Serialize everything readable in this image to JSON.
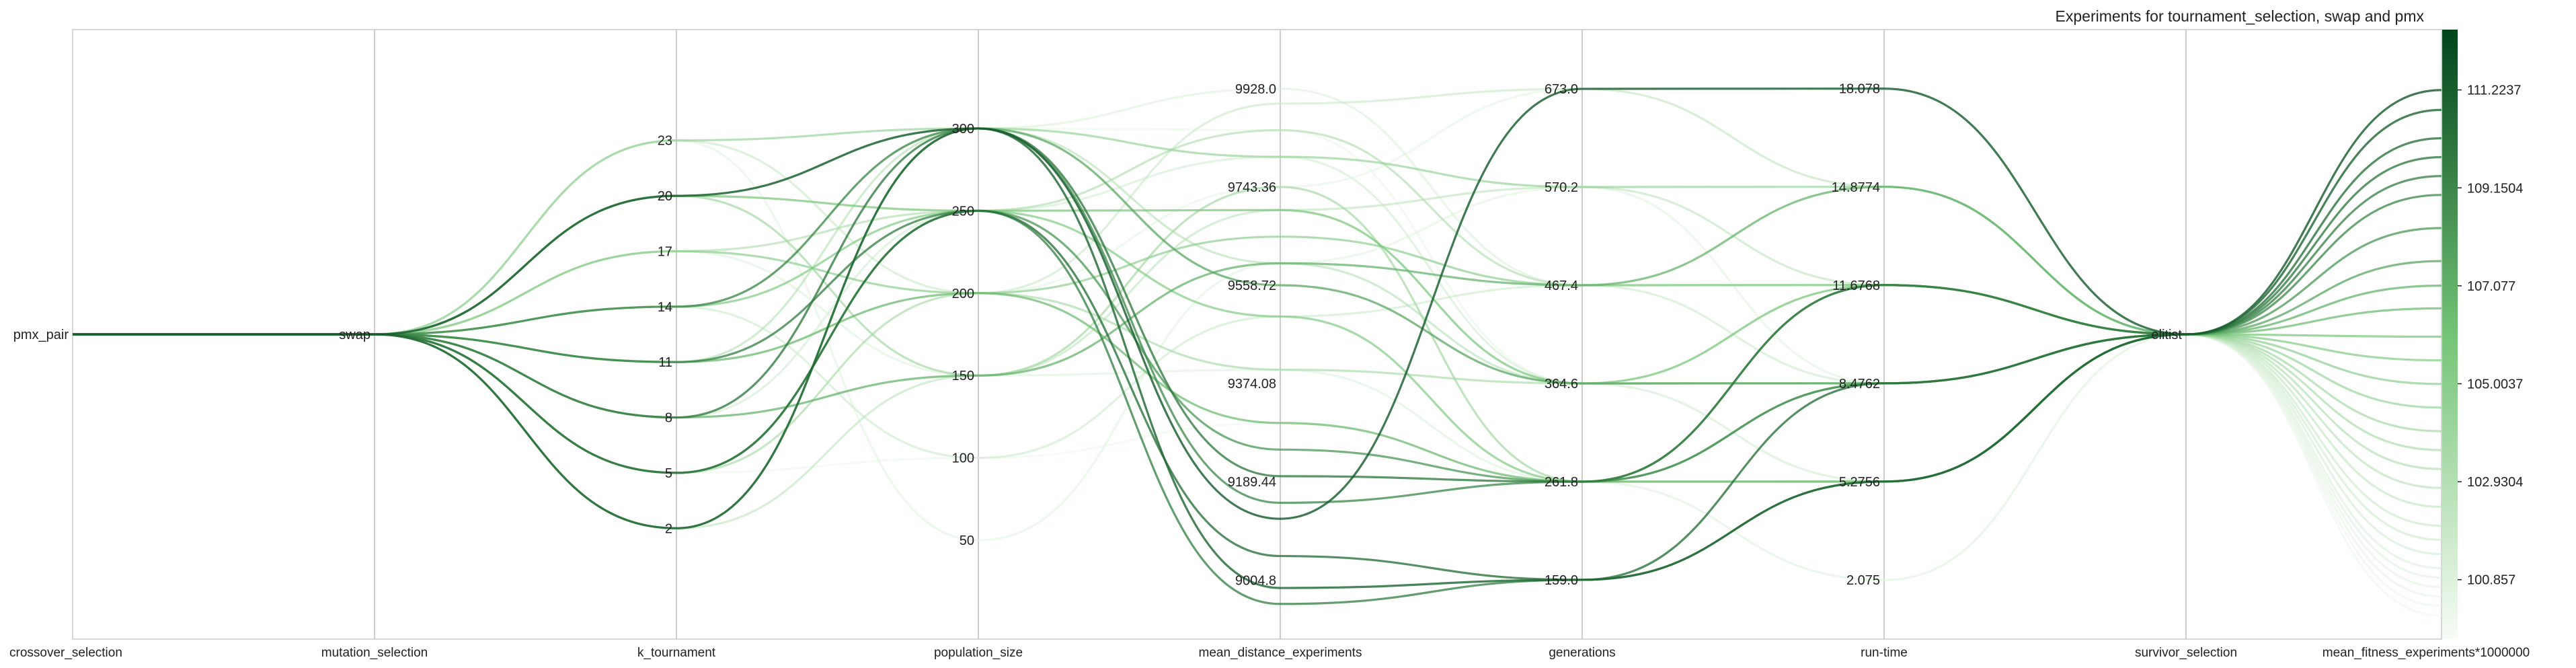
{
  "chart_data": {
    "type": "parallel_coordinates",
    "title": "Experiments for tournament_selection, swap and pmx",
    "colormap": {
      "name": "Greens",
      "low": "#f7fcf5",
      "mid": "#74c476",
      "high": "#00441b"
    },
    "line_alpha": 0.55,
    "axes": [
      {
        "name": "crossover_selection",
        "type": "categorical",
        "categories": [
          "pmx_pair"
        ],
        "range": [
          0,
          1
        ]
      },
      {
        "name": "mutation_selection",
        "type": "categorical",
        "categories": [
          "swap"
        ],
        "range": [
          0,
          1
        ]
      },
      {
        "name": "k_tournament",
        "type": "numeric",
        "range": [
          -4,
          29
        ],
        "ticks": [
          "2",
          "5",
          "8",
          "11",
          "14",
          "17",
          "20",
          "23"
        ]
      },
      {
        "name": "population_size",
        "type": "numeric",
        "range": [
          -10,
          360
        ],
        "ticks": [
          "50",
          "100",
          "150",
          "200",
          "250",
          "300"
        ]
      },
      {
        "name": "mean_distance_experiments",
        "type": "numeric",
        "range": [
          8894,
          10039
        ],
        "ticks": [
          "9004.8",
          "9189.44",
          "9374.08",
          "9558.72",
          "9743.36",
          "9928.0"
        ]
      },
      {
        "name": "generations",
        "type": "numeric",
        "range": [
          97,
          735
        ],
        "ticks": [
          "159.0",
          "261.8",
          "364.6",
          "467.4",
          "570.2",
          "673.0"
        ]
      },
      {
        "name": "run-time",
        "type": "numeric",
        "range": [
          0.15,
          20.0
        ],
        "ticks": [
          "2.075",
          "5.2756",
          "8.4762",
          "11.6768",
          "14.8774",
          "18.078"
        ]
      },
      {
        "name": "survivor_selection",
        "type": "categorical",
        "categories": [
          "elitist"
        ],
        "range": [
          0,
          1
        ]
      },
      {
        "name": "mean_fitness_experiments*1000000",
        "type": "numeric",
        "range": [
          99.6,
          112.5
        ],
        "colorbar": true,
        "ticks": [
          "100.857",
          "102.9304",
          "105.0037",
          "107.077",
          "109.1504",
          "111.2237"
        ]
      }
    ],
    "experiments": [
      {
        "k_tournament": 20,
        "population_size": 300,
        "mean_distance_experiments": 9120,
        "generations": 673,
        "run-time": 18.078,
        "mean_fitness": 111.22
      },
      {
        "k_tournament": 2,
        "population_size": 300,
        "mean_distance_experiments": 8990,
        "generations": 159,
        "run-time": 5.28,
        "mean_fitness": 110.8
      },
      {
        "k_tournament": 5,
        "population_size": 250,
        "mean_distance_experiments": 9050,
        "generations": 159,
        "run-time": 8.48,
        "mean_fitness": 110.2
      },
      {
        "k_tournament": 8,
        "population_size": 300,
        "mean_distance_experiments": 9200,
        "generations": 261.8,
        "run-time": 11.68,
        "mean_fitness": 109.8
      },
      {
        "k_tournament": 11,
        "population_size": 250,
        "mean_distance_experiments": 8960,
        "generations": 159,
        "run-time": 5.28,
        "mean_fitness": 109.4
      },
      {
        "k_tournament": 14,
        "population_size": 300,
        "mean_distance_experiments": 9150,
        "generations": 261.8,
        "run-time": 8.48,
        "mean_fitness": 109.0
      },
      {
        "k_tournament": 5,
        "population_size": 250,
        "mean_distance_experiments": 9250,
        "generations": 261.8,
        "run-time": 11.68,
        "mean_fitness": 108.3
      },
      {
        "k_tournament": 2,
        "population_size": 300,
        "mean_distance_experiments": 9558.72,
        "generations": 364.6,
        "run-time": 8.48,
        "mean_fitness": 107.6
      },
      {
        "k_tournament": 8,
        "population_size": 150,
        "mean_distance_experiments": 9600,
        "generations": 467.4,
        "run-time": 14.88,
        "mean_fitness": 107.08
      },
      {
        "k_tournament": 11,
        "population_size": 200,
        "mean_distance_experiments": 9300,
        "generations": 261.8,
        "run-time": 5.28,
        "mean_fitness": 106.6
      },
      {
        "k_tournament": 20,
        "population_size": 250,
        "mean_distance_experiments": 9700,
        "generations": 364.6,
        "run-time": 11.68,
        "mean_fitness": 106.0
      },
      {
        "k_tournament": 14,
        "population_size": 250,
        "mean_distance_experiments": 9500,
        "generations": 261.8,
        "run-time": 8.48,
        "mean_fitness": 105.5
      },
      {
        "k_tournament": 17,
        "population_size": 200,
        "mean_distance_experiments": 9650,
        "generations": 467.4,
        "run-time": 11.68,
        "mean_fitness": 105.0
      },
      {
        "k_tournament": 23,
        "population_size": 300,
        "mean_distance_experiments": 9800,
        "generations": 570.2,
        "run-time": 14.88,
        "mean_fitness": 104.5
      },
      {
        "k_tournament": 20,
        "population_size": 150,
        "mean_distance_experiments": 9743.36,
        "generations": 261.8,
        "run-time": 5.28,
        "mean_fitness": 104.0
      },
      {
        "k_tournament": 5,
        "population_size": 200,
        "mean_distance_experiments": 9400,
        "generations": 364.6,
        "run-time": 8.48,
        "mean_fitness": 103.6
      },
      {
        "k_tournament": 17,
        "population_size": 250,
        "mean_distance_experiments": 9850,
        "generations": 467.4,
        "run-time": 11.68,
        "mean_fitness": 103.2
      },
      {
        "k_tournament": 11,
        "population_size": 300,
        "mean_distance_experiments": 9600,
        "generations": 364.6,
        "run-time": 8.48,
        "mean_fitness": 102.8
      },
      {
        "k_tournament": 2,
        "population_size": 150,
        "mean_distance_experiments": 9700,
        "generations": 570.2,
        "run-time": 11.68,
        "mean_fitness": 102.4
      },
      {
        "k_tournament": 23,
        "population_size": 200,
        "mean_distance_experiments": 9900,
        "generations": 673,
        "run-time": 14.88,
        "mean_fitness": 102.0
      },
      {
        "k_tournament": 14,
        "population_size": 100,
        "mean_distance_experiments": 9500,
        "generations": 467.4,
        "run-time": 8.48,
        "mean_fitness": 101.7
      },
      {
        "k_tournament": 8,
        "population_size": 250,
        "mean_distance_experiments": 9800,
        "generations": 364.6,
        "run-time": 5.28,
        "mean_fitness": 101.4
      },
      {
        "k_tournament": 20,
        "population_size": 300,
        "mean_distance_experiments": 9928,
        "generations": 467.4,
        "run-time": 11.68,
        "mean_fitness": 101.1
      },
      {
        "k_tournament": 17,
        "population_size": 150,
        "mean_distance_experiments": 9400,
        "generations": 261.8,
        "run-time": 2.075,
        "mean_fitness": 100.9
      },
      {
        "k_tournament": 23,
        "population_size": 50,
        "mean_distance_experiments": 9600,
        "generations": 570.2,
        "run-time": 8.48,
        "mean_fitness": 100.7
      },
      {
        "k_tournament": 11,
        "population_size": 200,
        "mean_distance_experiments": 9743.36,
        "generations": 673,
        "run-time": 14.88,
        "mean_fitness": 100.5
      },
      {
        "k_tournament": 14,
        "population_size": 300,
        "mean_distance_experiments": 9850,
        "generations": 364.6,
        "run-time": 11.68,
        "mean_fitness": 100.3
      },
      {
        "k_tournament": 5,
        "population_size": 100,
        "mean_distance_experiments": 9300,
        "generations": 261.8,
        "run-time": 5.28,
        "mean_fitness": 100.1
      }
    ]
  }
}
